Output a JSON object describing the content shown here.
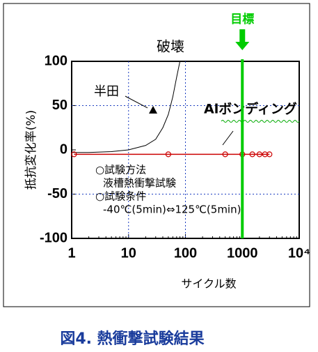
{
  "chart_data": {
    "type": "line",
    "title": "破壊",
    "x_label": "サイクル数",
    "y_label": "抵抗変化率(%)",
    "xlim": [
      1,
      10000
    ],
    "log_x": true,
    "xticks": [
      1,
      10,
      100,
      1000,
      {
        "value": 10000,
        "label": "10⁴"
      }
    ],
    "ylim": [
      -100,
      100
    ],
    "yticks": [
      -100,
      -50,
      0,
      50,
      100
    ],
    "grid": true,
    "series": [
      {
        "name": "半田",
        "color": "#000000",
        "x": [
          1,
          2,
          5,
          10,
          20,
          30,
          40,
          50,
          60,
          70,
          80
        ],
        "values": [
          -3,
          -3,
          -2,
          0,
          5,
          12,
          25,
          40,
          60,
          82,
          100
        ],
        "marker": {
          "x": 27,
          "y": 45
        }
      },
      {
        "name": "Alボンディング",
        "color": "#cc0000",
        "x": [
          1.1,
          50,
          500,
          1000,
          1500,
          2000,
          2500,
          3000
        ],
        "values": [
          -5,
          -5,
          -5,
          -5,
          -5,
          -5,
          -5,
          -5
        ]
      }
    ],
    "target": {
      "label": "目標",
      "x": 1000,
      "color": "#00cc00"
    },
    "conditions": [
      "○試験方法",
      "液槽熱衝撃試験",
      "○試験条件",
      "-40℃(5min)⇔125℃(5min)"
    ],
    "caption": "図4. 熱衝撃試験結果"
  }
}
